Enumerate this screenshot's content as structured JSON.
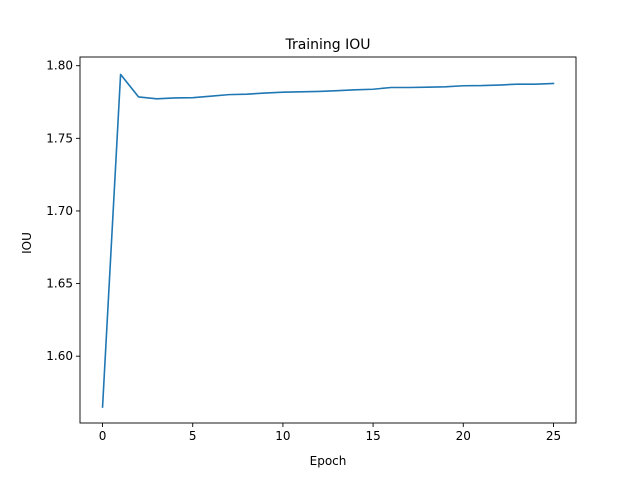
{
  "chart_data": {
    "type": "line",
    "title": "Training IOU",
    "xlabel": "Epoch",
    "ylabel": "IOU",
    "xlim": [
      -1.25,
      26.25
    ],
    "ylim": [
      1.554,
      1.806
    ],
    "xticks": [
      0,
      5,
      10,
      15,
      20,
      25
    ],
    "yticks": [
      1.6,
      1.65,
      1.7,
      1.75,
      1.8
    ],
    "xtick_labels": [
      "0",
      "5",
      "10",
      "15",
      "20",
      "25"
    ],
    "ytick_labels": [
      "1.60",
      "1.65",
      "1.70",
      "1.75",
      "1.80"
    ],
    "grid": false,
    "series": [
      {
        "color": "#1f77b4",
        "x": [
          0,
          1,
          2,
          3,
          4,
          5,
          6,
          7,
          8,
          9,
          10,
          11,
          12,
          13,
          14,
          15,
          16,
          17,
          18,
          19,
          20,
          21,
          22,
          23,
          24,
          25
        ],
        "y": [
          1.565,
          1.794,
          1.7785,
          1.7772,
          1.7778,
          1.778,
          1.779,
          1.7801,
          1.7804,
          1.7812,
          1.7818,
          1.782,
          1.7823,
          1.7828,
          1.7834,
          1.7838,
          1.785,
          1.785,
          1.7852,
          1.7855,
          1.7862,
          1.7863,
          1.7867,
          1.7873,
          1.7873,
          1.7878
        ]
      }
    ]
  }
}
